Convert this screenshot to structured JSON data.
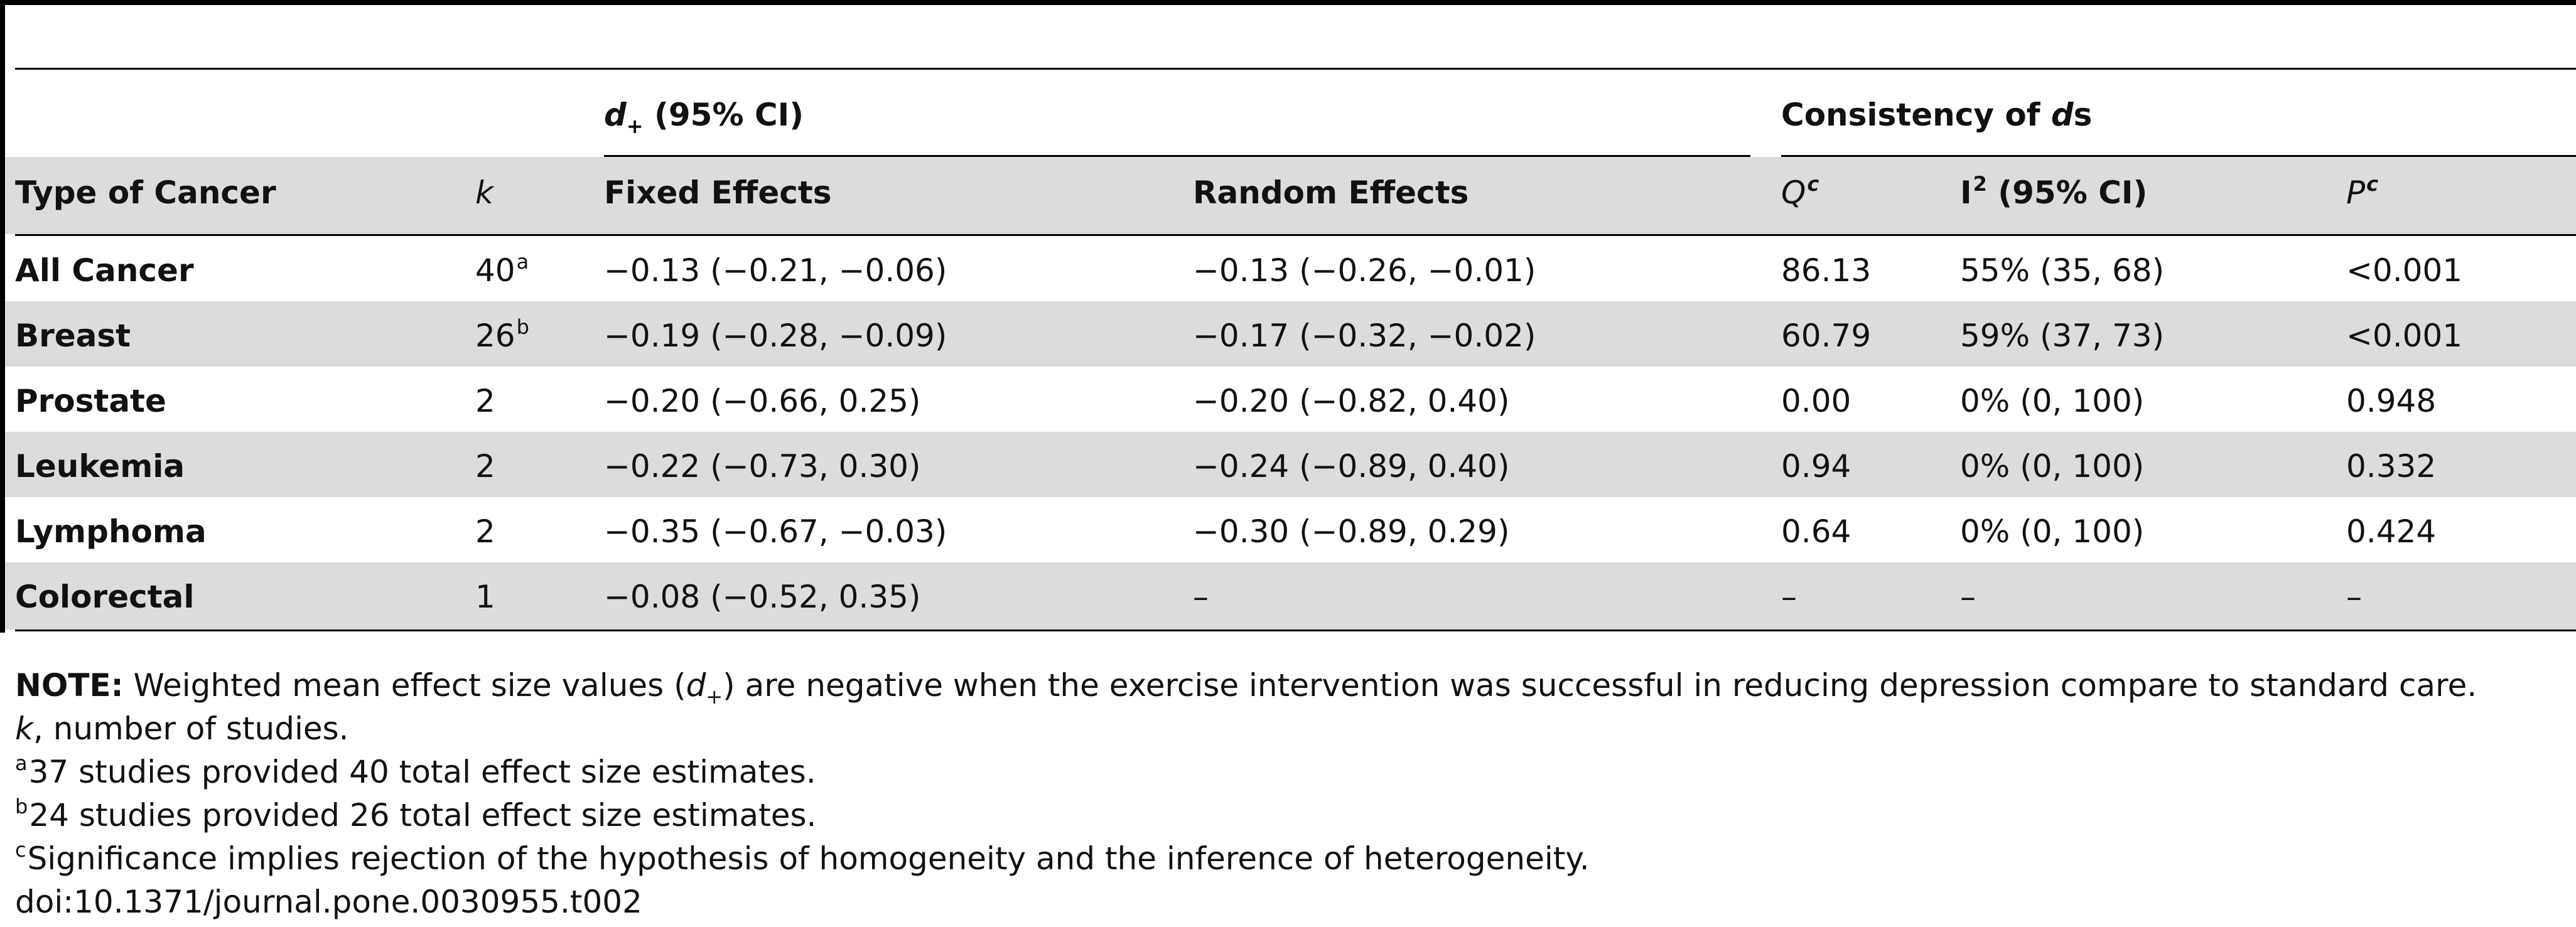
{
  "header": {
    "group_d": "(95% CI)",
    "group_d_symbol": "d",
    "group_d_sub": "+",
    "group_consistency_prefix": "Consistency of",
    "group_consistency_symbol": "d",
    "group_consistency_suffix": "s",
    "col_type": "Type of Cancer",
    "col_k": "k",
    "col_fixed": "Fixed Effects",
    "col_random": "Random Effects",
    "col_q": "Q",
    "col_q_sup": "c",
    "col_i2": "I",
    "col_i2_sup": "2",
    "col_i2_suffix": " (95% CI)",
    "col_p": "P",
    "col_p_sup": "c"
  },
  "rows": [
    {
      "type": "All Cancer",
      "k": "40",
      "k_sup": "a",
      "fixed": "−0.13 (−0.21, −0.06)",
      "random": "−0.13 (−0.26, −0.01)",
      "q": "86.13",
      "i2": "55% (35, 68)",
      "p": "<0.001"
    },
    {
      "type": "Breast",
      "k": "26",
      "k_sup": "b",
      "fixed": "−0.19 (−0.28, −0.09)",
      "random": "−0.17 (−0.32, −0.02)",
      "q": "60.79",
      "i2": "59% (37, 73)",
      "p": "<0.001"
    },
    {
      "type": "Prostate",
      "k": "2",
      "k_sup": "",
      "fixed": "−0.20 (−0.66, 0.25)",
      "random": "−0.20 (−0.82, 0.40)",
      "q": "0.00",
      "i2": "0% (0, 100)",
      "p": "0.948"
    },
    {
      "type": "Leukemia",
      "k": "2",
      "k_sup": "",
      "fixed": "−0.22 (−0.73, 0.30)",
      "random": "−0.24 (−0.89, 0.40)",
      "q": "0.94",
      "i2": "0% (0, 100)",
      "p": "0.332"
    },
    {
      "type": "Lymphoma",
      "k": "2",
      "k_sup": "",
      "fixed": "−0.35 (−0.67, −0.03)",
      "random": "−0.30 (−0.89, 0.29)",
      "q": "0.64",
      "i2": "0% (0, 100)",
      "p": "0.424"
    },
    {
      "type": "Colorectal",
      "k": "1",
      "k_sup": "",
      "fixed": "−0.08 (−0.52, 0.35)",
      "random": "–",
      "q": "–",
      "i2": "–",
      "p": "–"
    }
  ],
  "notes": {
    "note_label": "NOTE:",
    "note_text_a": " Weighted mean effect size values (",
    "note_symbol": "d",
    "note_sub": "+",
    "note_text_b": ") are negative when the exercise intervention was successful in reducing depression compare to standard care.",
    "k_symbol": "k",
    "k_text": ", number of studies.",
    "a_mark": "a",
    "a_text": "37 studies provided 40 total effect size estimates.",
    "b_mark": "b",
    "b_text": "24 studies provided 26 total effect size estimates.",
    "c_mark": "c",
    "c_text": "Significance implies rejection of the hypothesis of homogeneity and the inference of heterogeneity.",
    "doi": "doi:10.1371/journal.pone.0030955.t002"
  }
}
